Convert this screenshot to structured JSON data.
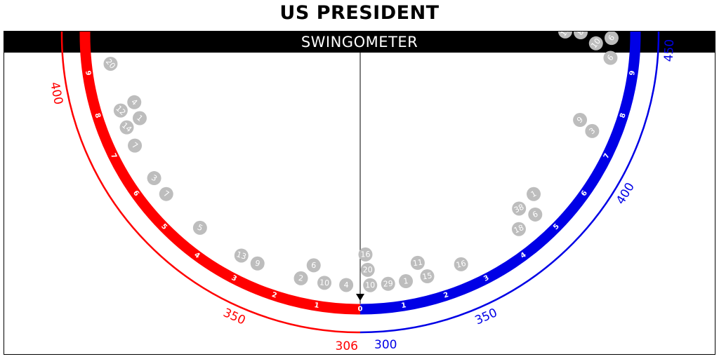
{
  "header": {
    "title": "US PRESIDENT",
    "subtitle": "SWINGOMETER"
  },
  "colors": {
    "red": "#ff0000",
    "blue": "#0000e6",
    "bubble": "#bdbdbd",
    "bubble_text": "#ffffff"
  },
  "scale": {
    "red_ticks": [
      "0",
      "1",
      "2",
      "3",
      "4",
      "5",
      "6",
      "7",
      "8",
      "9"
    ],
    "blue_ticks": [
      "0",
      "1",
      "2",
      "3",
      "4",
      "5",
      "6",
      "7",
      "8",
      "9"
    ],
    "red_outer_labels": [
      "350",
      "400"
    ],
    "blue_outer_labels": [
      "350",
      "400",
      "450"
    ]
  },
  "readout": {
    "red_value": "306",
    "blue_value": "300"
  },
  "pointer": {
    "position": 0
  },
  "states": {
    "red": [
      {
        "v": "20",
        "swing": 9.15
      },
      {
        "v": "12",
        "swing": 7.95
      },
      {
        "v": "4",
        "swing": 8.05
      },
      {
        "v": "1",
        "swing": 7.6
      },
      {
        "v": "14",
        "swing": 7.5
      },
      {
        "v": "7",
        "swing": 7.0
      },
      {
        "v": "3",
        "swing": 6.05
      },
      {
        "v": "7",
        "swing": 5.55
      },
      {
        "v": "5",
        "swing": 4.35
      },
      {
        "v": "13",
        "swing": 3.1
      },
      {
        "v": "9",
        "swing": 2.65
      },
      {
        "v": "2",
        "swing": 1.5
      },
      {
        "v": "6",
        "swing": 1.25
      },
      {
        "v": "10",
        "swing": 0.9
      },
      {
        "v": "4",
        "swing": 0.35
      }
    ],
    "blue": [
      {
        "v": "10",
        "swing": 0.25
      },
      {
        "v": "20",
        "swing": 0.2
      },
      {
        "v": "16",
        "swing": 0.15
      },
      {
        "v": "29",
        "swing": 0.7
      },
      {
        "v": "1",
        "swing": 1.15
      },
      {
        "v": "15",
        "swing": 1.7
      },
      {
        "v": "11",
        "swing": 1.55
      },
      {
        "v": "16",
        "swing": 2.6
      },
      {
        "v": "18",
        "swing": 4.3
      },
      {
        "v": "38",
        "swing": 4.65
      },
      {
        "v": "6",
        "swing": 4.85
      },
      {
        "v": "1",
        "swing": 5.2
      },
      {
        "v": "3",
        "swing": 7.4
      },
      {
        "v": "9",
        "swing": 7.55
      },
      {
        "v": "6",
        "swing": 9.3
      },
      {
        "v": "10",
        "swing": 9.65
      },
      {
        "v": "6",
        "swing": 9.8
      },
      {
        "v": "8",
        "swing": 9.95
      },
      {
        "v": "11",
        "swing": 9.98
      }
    ]
  }
}
